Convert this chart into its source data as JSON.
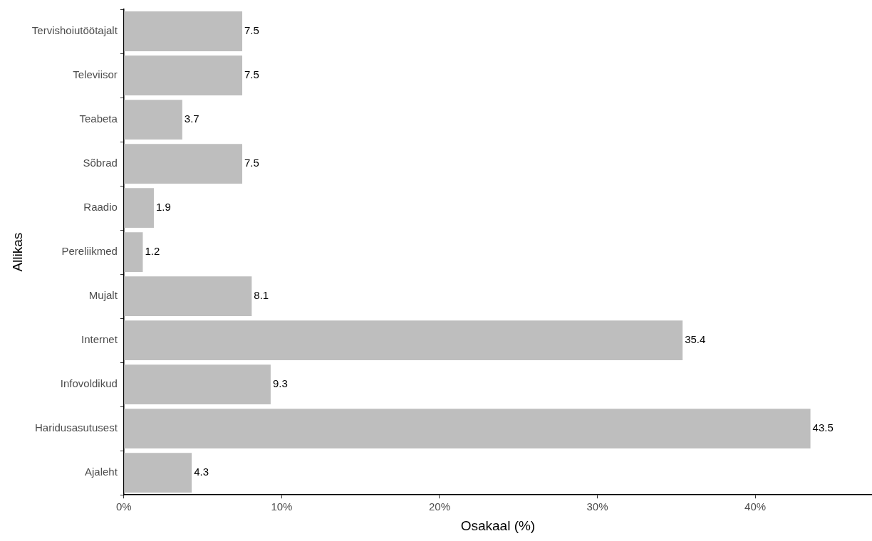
{
  "chart_data": {
    "type": "bar",
    "orientation": "horizontal",
    "xlabel": "Osakaal (%)",
    "ylabel": "Allikas",
    "categories": [
      "Tervishoiutöötajalt",
      "Televiisor",
      "Teabeta",
      "Sõbrad",
      "Raadio",
      "Pereliikmed",
      "Mujalt",
      "Internet",
      "Infovoldikud",
      "Haridusasutusest",
      "Ajaleht"
    ],
    "values": [
      7.5,
      7.5,
      3.7,
      7.5,
      1.9,
      1.2,
      8.1,
      35.4,
      9.3,
      43.5,
      4.3
    ],
    "color": "#bebebe",
    "xlim": [
      0,
      47.4
    ],
    "xticks": [
      {
        "value": 0,
        "label": "0%"
      },
      {
        "value": 10,
        "label": "10%"
      },
      {
        "value": 20,
        "label": "20%"
      },
      {
        "value": 30,
        "label": "30%"
      },
      {
        "value": 40,
        "label": "40%"
      }
    ],
    "data_labels": true,
    "grid": false,
    "legend": false
  }
}
